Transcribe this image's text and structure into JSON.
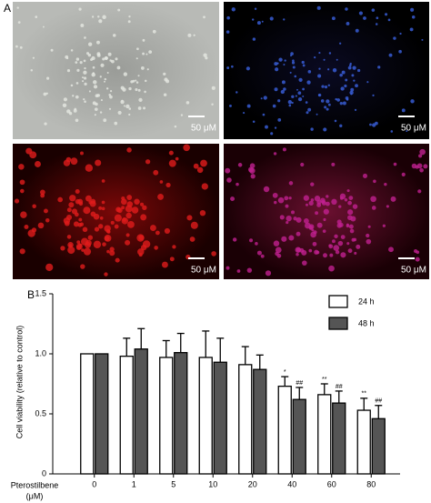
{
  "panel_a": {
    "label": "A",
    "images": [
      {
        "scale_bar": "50 μM"
      },
      {
        "scale_bar": "50 μM"
      },
      {
        "scale_bar": "50 μM"
      },
      {
        "scale_bar": "50 μM"
      }
    ]
  },
  "panel_b_label": "B",
  "chart_data": {
    "type": "bar",
    "ylabel": "Cell viability (relative to control)",
    "xlabel_lines": [
      "Pterostilbene",
      "(μM)"
    ],
    "categories": [
      "0",
      "1",
      "5",
      "10",
      "20",
      "40",
      "60",
      "80"
    ],
    "series": [
      {
        "name": "24 h",
        "color": "#ffffff",
        "values": [
          1.0,
          0.98,
          0.97,
          0.97,
          0.91,
          0.73,
          0.66,
          0.53
        ],
        "errors": [
          0,
          0.15,
          0.14,
          0.22,
          0.15,
          0.08,
          0.09,
          0.1
        ],
        "annotations": [
          null,
          null,
          null,
          null,
          null,
          "*",
          "**",
          "**"
        ]
      },
      {
        "name": "48 h",
        "color": "#555555",
        "values": [
          1.0,
          1.04,
          1.01,
          0.93,
          0.87,
          0.62,
          0.59,
          0.46
        ],
        "errors": [
          0,
          0.17,
          0.16,
          0.2,
          0.12,
          0.1,
          0.1,
          0.11
        ],
        "annotations": [
          null,
          null,
          null,
          null,
          null,
          "##",
          "##",
          "##"
        ]
      }
    ],
    "ylim": [
      0,
      1.5
    ],
    "yticks": [
      0,
      0.5,
      {
        "value": 1,
        "label": "1.0"
      },
      1.5
    ],
    "legend": "upper right"
  }
}
